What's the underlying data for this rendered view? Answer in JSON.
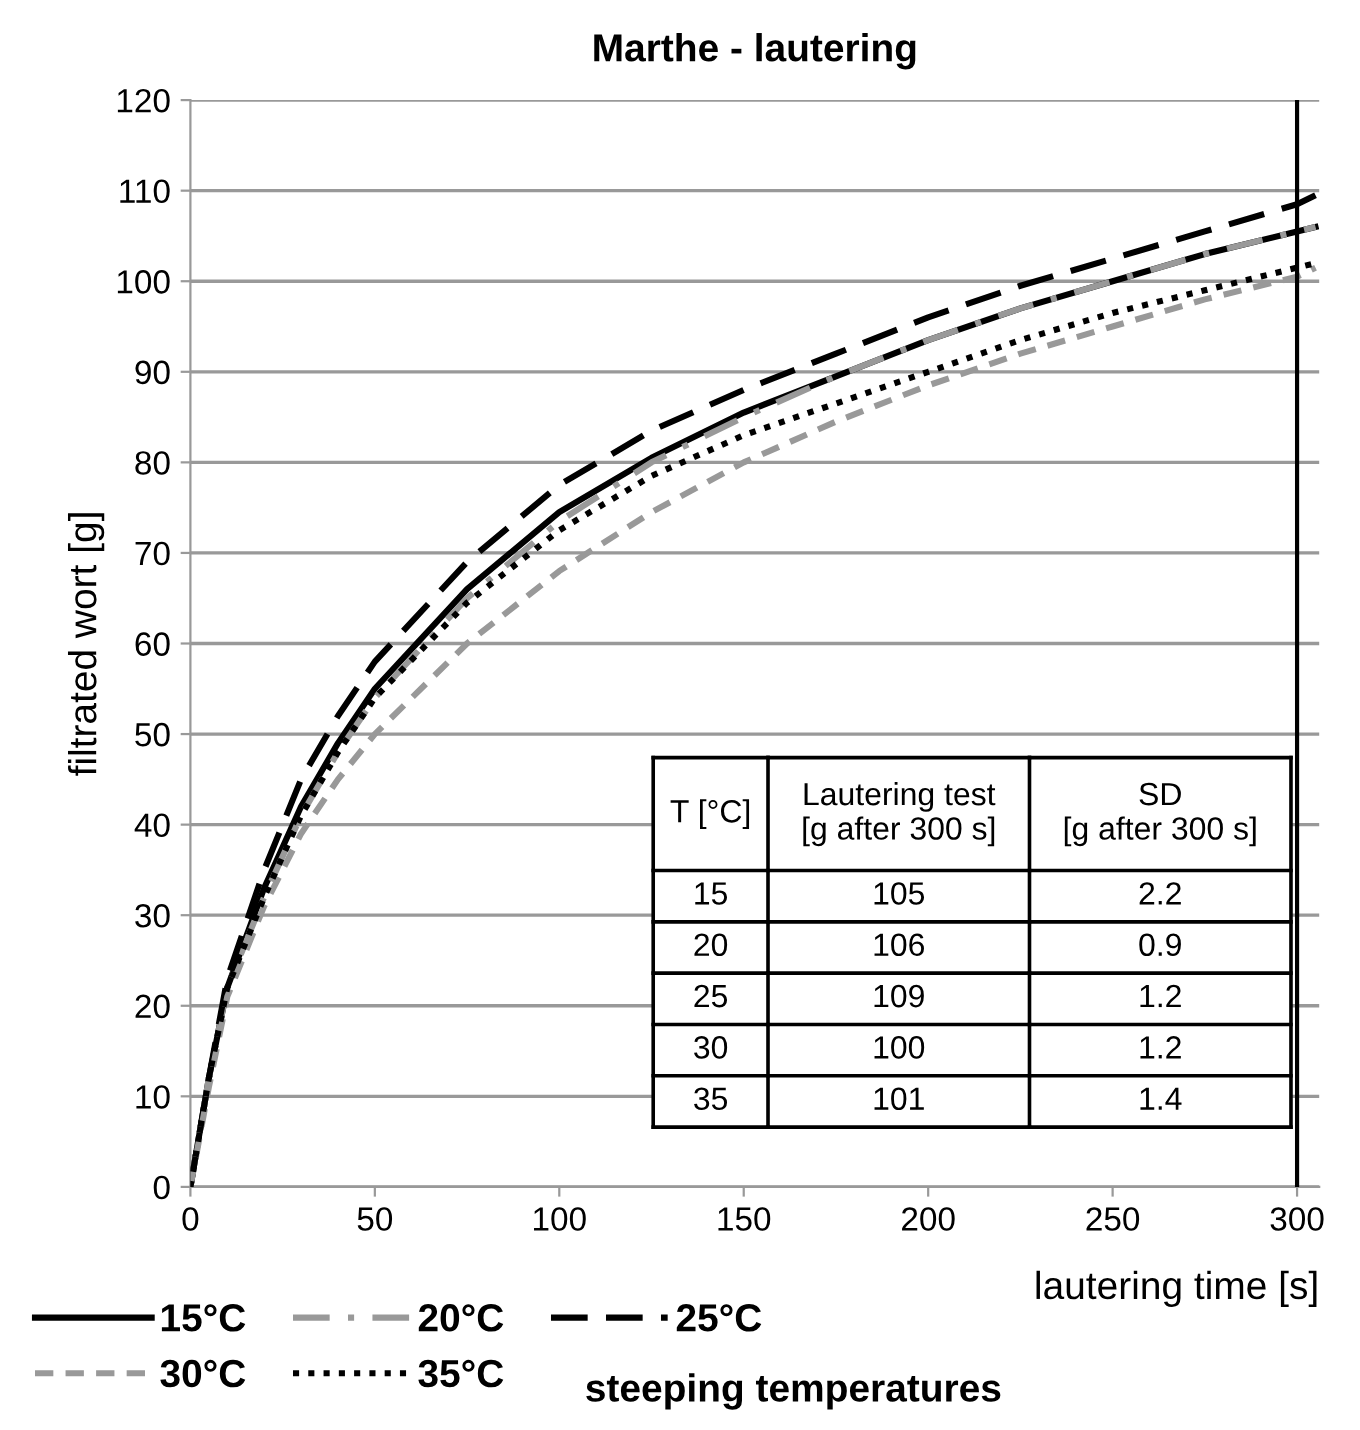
{
  "chart_data": {
    "type": "line",
    "title": "Marthe - lautering",
    "xlabel": "lautering time [s]",
    "ylabel": "filtrated wort [g]",
    "legend_title": "steeping temperatures",
    "x": [
      0,
      5,
      10,
      20,
      30,
      40,
      50,
      75,
      100,
      125,
      150,
      175,
      200,
      225,
      250,
      275,
      300,
      305
    ],
    "series": [
      {
        "name": "15°C",
        "color": "#000000",
        "line_style": "solid",
        "values": [
          0,
          12,
          22,
          33,
          42,
          49,
          55,
          66,
          74.5,
          80.5,
          85.5,
          89.5,
          93.5,
          97,
          100,
          103,
          105.5,
          106
        ]
      },
      {
        "name": "20°C",
        "color": "#999999",
        "line_style": "dashdot",
        "values": [
          0,
          12,
          22,
          32,
          41,
          48,
          54,
          65,
          73.5,
          80,
          85,
          89.5,
          93.5,
          97,
          100,
          103,
          105.5,
          106
        ]
      },
      {
        "name": "25°C",
        "color": "#000000",
        "line_style": "dashed",
        "values": [
          0,
          12,
          23,
          35,
          45,
          52,
          58,
          69,
          77.5,
          83.5,
          88,
          92,
          96,
          99.5,
          102.5,
          105.5,
          108.5,
          109.5
        ]
      },
      {
        "name": "30°C",
        "color": "#999999",
        "line_style": "dashed",
        "values": [
          0,
          11,
          21,
          31,
          39,
          45,
          50,
          60,
          68,
          74.5,
          80,
          84.5,
          88.5,
          92,
          95,
          98,
          100.5,
          101.5
        ]
      },
      {
        "name": "35°C",
        "color": "#000000",
        "line_style": "dotted",
        "values": [
          0,
          12,
          22,
          32,
          41,
          48,
          54,
          64.5,
          72.5,
          78.5,
          83,
          86.5,
          90,
          93.5,
          96.5,
          99,
          101.5,
          102
        ]
      }
    ],
    "xlim": [
      0,
      306
    ],
    "xticks": [
      0,
      50,
      100,
      150,
      200,
      250,
      300
    ],
    "ylim": [
      0,
      120
    ],
    "yticks": [
      0,
      10,
      20,
      30,
      40,
      50,
      60,
      70,
      80,
      90,
      100,
      110,
      120
    ],
    "grid": "y",
    "legend": "bottom",
    "ref_lines": [
      {
        "axis": "x",
        "value": 300,
        "color": "#000000"
      }
    ],
    "annotations": [
      "T [°C]",
      "Lautering test\n[g after 300 s]",
      "SD\n[g after 300 s]",
      "15",
      "105",
      "2.2",
      "20",
      "106",
      "0.9",
      "25",
      "109",
      "1.2",
      "30",
      "100",
      "1.2",
      "35",
      "101",
      "1.4"
    ]
  }
}
